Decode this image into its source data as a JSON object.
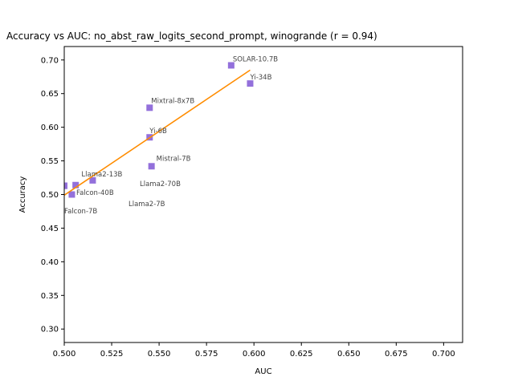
{
  "chart_data": {
    "type": "scatter",
    "title": "Accuracy vs AUC: no_abst_raw_logits_second_prompt, winogrande (r = 0.94)",
    "xlabel": "AUC",
    "ylabel": "Accuracy",
    "xlim": [
      0.5,
      0.71
    ],
    "ylim": [
      0.28,
      0.72
    ],
    "xticks": [
      0.5,
      0.525,
      0.55,
      0.575,
      0.6,
      0.625,
      0.65,
      0.675,
      0.7
    ],
    "xtick_labels": [
      "0.500",
      "0.525",
      "0.550",
      "0.575",
      "0.600",
      "0.625",
      "0.650",
      "0.675",
      "0.700"
    ],
    "yticks": [
      0.3,
      0.35,
      0.4,
      0.45,
      0.5,
      0.55,
      0.6,
      0.65,
      0.7
    ],
    "ytick_labels": [
      "0.30",
      "0.35",
      "0.40",
      "0.45",
      "0.50",
      "0.55",
      "0.60",
      "0.65",
      "0.70"
    ],
    "grid": false,
    "marker_color": "#9370db",
    "trend_color": "#ff8c00",
    "points": [
      {
        "label": "SOLAR-10.7B",
        "x": 0.588,
        "y": 0.692
      },
      {
        "label": "Yi-34B",
        "x": 0.598,
        "y": 0.665
      },
      {
        "label": "Mixtral-8x7B",
        "x": 0.545,
        "y": 0.629
      },
      {
        "label": "Yi-6B",
        "x": 0.545,
        "y": 0.585
      },
      {
        "label": "Mistral-7B",
        "x": 0.546,
        "y": 0.542
      },
      {
        "label": "Llama2-13B",
        "x": 0.515,
        "y": 0.521
      },
      {
        "label": "Llama2-70B",
        "x": 0.506,
        "y": 0.514
      },
      {
        "label": "Falcon-40B",
        "x": 0.504,
        "y": 0.5
      },
      {
        "label": "Llama2-7B",
        "x": 0.5,
        "y": 0.513
      },
      {
        "label": "Falcon-7B",
        "x": 0.5,
        "y": 0.513
      }
    ],
    "trend_line": {
      "x": [
        0.5,
        0.598
      ],
      "y": [
        0.499,
        0.685
      ]
    }
  }
}
